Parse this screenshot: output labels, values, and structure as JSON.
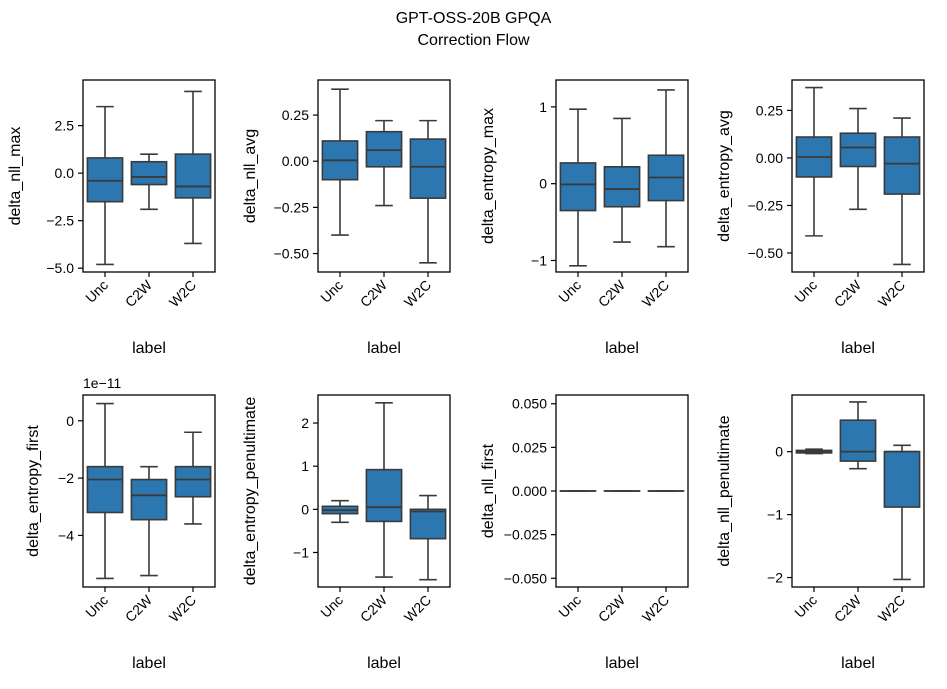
{
  "figure": {
    "title": "GPT-OSS-20B GPQA",
    "subtitle": "Correction Flow",
    "box_color": "#2c77b0",
    "line_color": "#3a3a3a"
  },
  "chart_data": [
    {
      "type": "box",
      "ylabel": "delta_nll_max",
      "xlabel": "label",
      "categories": [
        "Unc",
        "C2W",
        "W2C"
      ],
      "ylim": [
        -5.2,
        4.9
      ],
      "yticks": [
        -5.0,
        -2.5,
        0.0,
        2.5
      ],
      "ytick_labels": [
        "−5.0",
        "−2.5",
        "0.0",
        "2.5"
      ],
      "boxes": [
        {
          "whislo": -4.8,
          "q1": -1.5,
          "med": -0.4,
          "q3": 0.8,
          "whishi": 3.5
        },
        {
          "whislo": -1.9,
          "q1": -0.6,
          "med": -0.2,
          "q3": 0.6,
          "whishi": 1.0
        },
        {
          "whislo": -3.7,
          "q1": -1.3,
          "med": -0.7,
          "q3": 1.0,
          "whishi": 4.3
        }
      ]
    },
    {
      "type": "box",
      "ylabel": "delta_nll_avg",
      "xlabel": "label",
      "categories": [
        "Unc",
        "C2W",
        "W2C"
      ],
      "ylim": [
        -0.6,
        0.44
      ],
      "yticks": [
        -0.5,
        -0.25,
        0.0,
        0.25
      ],
      "ytick_labels": [
        "−0.50",
        "−0.25",
        "0.00",
        "0.25"
      ],
      "boxes": [
        {
          "whislo": -0.4,
          "q1": -0.1,
          "med": 0.005,
          "q3": 0.11,
          "whishi": 0.39
        },
        {
          "whislo": -0.24,
          "q1": -0.03,
          "med": 0.06,
          "q3": 0.16,
          "whishi": 0.22
        },
        {
          "whislo": -0.55,
          "q1": -0.2,
          "med": -0.03,
          "q3": 0.12,
          "whishi": 0.22
        }
      ]
    },
    {
      "type": "box",
      "ylabel": "delta_entropy_max",
      "xlabel": "label",
      "categories": [
        "Unc",
        "C2W",
        "W2C"
      ],
      "ylim": [
        -1.15,
        1.35
      ],
      "yticks": [
        -1,
        0,
        1
      ],
      "ytick_labels": [
        "−1",
        "0",
        "1"
      ],
      "boxes": [
        {
          "whislo": -1.07,
          "q1": -0.35,
          "med": -0.01,
          "q3": 0.27,
          "whishi": 0.97
        },
        {
          "whislo": -0.76,
          "q1": -0.3,
          "med": -0.07,
          "q3": 0.22,
          "whishi": 0.85
        },
        {
          "whislo": -0.82,
          "q1": -0.22,
          "med": 0.08,
          "q3": 0.37,
          "whishi": 1.22
        }
      ]
    },
    {
      "type": "box",
      "ylabel": "delta_entropy_avg",
      "xlabel": "label",
      "categories": [
        "Unc",
        "C2W",
        "W2C"
      ],
      "ylim": [
        -0.6,
        0.41
      ],
      "yticks": [
        -0.5,
        -0.25,
        0.0,
        0.25
      ],
      "ytick_labels": [
        "−0.50",
        "−0.25",
        "0.00",
        "0.25"
      ],
      "boxes": [
        {
          "whislo": -0.41,
          "q1": -0.1,
          "med": 0.005,
          "q3": 0.11,
          "whishi": 0.37
        },
        {
          "whislo": -0.27,
          "q1": -0.045,
          "med": 0.055,
          "q3": 0.13,
          "whishi": 0.26
        },
        {
          "whislo": -0.56,
          "q1": -0.19,
          "med": -0.03,
          "q3": 0.11,
          "whishi": 0.21
        }
      ]
    },
    {
      "type": "box",
      "ylabel": "delta_entropy_first",
      "xlabel": "label",
      "offset_label": "1e−11",
      "categories": [
        "Unc",
        "C2W",
        "W2C"
      ],
      "ylim": [
        -5.8,
        0.9
      ],
      "yticks": [
        -4,
        -2,
        0
      ],
      "ytick_labels": [
        "−4",
        "−2",
        "0"
      ],
      "boxes": [
        {
          "whislo": -5.5,
          "q1": -3.2,
          "med": -2.05,
          "q3": -1.6,
          "whishi": 0.6
        },
        {
          "whislo": -5.4,
          "q1": -3.45,
          "med": -2.6,
          "q3": -2.05,
          "whishi": -1.6
        },
        {
          "whislo": -3.6,
          "q1": -2.65,
          "med": -2.05,
          "q3": -1.6,
          "whishi": -0.4
        }
      ]
    },
    {
      "type": "box",
      "ylabel": "delta_entropy_penultimate",
      "xlabel": "label",
      "categories": [
        "Unc",
        "C2W",
        "W2C"
      ],
      "ylim": [
        -1.8,
        2.65
      ],
      "yticks": [
        -1,
        0,
        1,
        2
      ],
      "ytick_labels": [
        "−1",
        "0",
        "1",
        "2"
      ],
      "boxes": [
        {
          "whislo": -0.3,
          "q1": -0.1,
          "med": -0.02,
          "q3": 0.07,
          "whishi": 0.2
        },
        {
          "whislo": -1.57,
          "q1": -0.28,
          "med": 0.05,
          "q3": 0.92,
          "whishi": 2.47
        },
        {
          "whislo": -1.63,
          "q1": -0.68,
          "med": -0.05,
          "q3": 0.0,
          "whishi": 0.32
        }
      ]
    },
    {
      "type": "box",
      "ylabel": "delta_nll_first",
      "xlabel": "label",
      "categories": [
        "Unc",
        "C2W",
        "W2C"
      ],
      "ylim": [
        -0.055,
        0.055
      ],
      "yticks": [
        -0.05,
        -0.025,
        0.0,
        0.025,
        0.05
      ],
      "ytick_labels": [
        "−0.050",
        "−0.025",
        "0.000",
        "0.025",
        "0.050"
      ],
      "boxes": [
        {
          "whislo": 0,
          "q1": 0,
          "med": 0,
          "q3": 0,
          "whishi": 0
        },
        {
          "whislo": 0,
          "q1": 0,
          "med": 0,
          "q3": 0,
          "whishi": 0
        },
        {
          "whislo": 0,
          "q1": 0,
          "med": 0,
          "q3": 0,
          "whishi": 0
        }
      ]
    },
    {
      "type": "box",
      "ylabel": "delta_nll_penultimate",
      "xlabel": "label",
      "categories": [
        "Unc",
        "C2W",
        "W2C"
      ],
      "ylim": [
        -2.15,
        0.9
      ],
      "yticks": [
        -2,
        -1,
        0
      ],
      "ytick_labels": [
        "−2",
        "−1",
        "0"
      ],
      "boxes": [
        {
          "whislo": -0.03,
          "q1": -0.02,
          "med": 0.0,
          "q3": 0.02,
          "whishi": 0.04
        },
        {
          "whislo": -0.27,
          "q1": -0.15,
          "med": 0.0,
          "q3": 0.5,
          "whishi": 0.79
        },
        {
          "whislo": -2.03,
          "q1": -0.88,
          "med": 0.0,
          "q3": 0.0,
          "whishi": 0.1
        }
      ]
    }
  ]
}
